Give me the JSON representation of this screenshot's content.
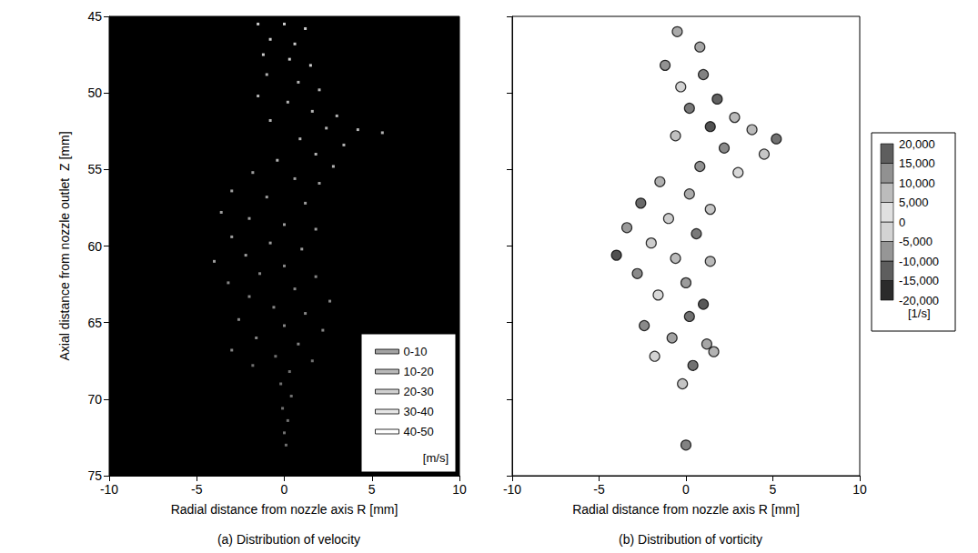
{
  "chart_data": [
    {
      "type": "scatter",
      "title": "(a) Distribution of velocity",
      "x_label": "Radial distance from nozzle axis R [mm]",
      "y_label": "Axial distance from nozzle outlet  Z [mm]",
      "xlim": [
        -10,
        10
      ],
      "xticks": [
        -10,
        -5,
        0,
        5,
        10
      ],
      "ylim": [
        75,
        45
      ],
      "yticks": [
        45,
        50,
        55,
        60,
        65,
        70,
        75
      ],
      "marker": "rect",
      "legend": "lower right",
      "legend_title": "[m/s]",
      "series": [
        {
          "name": "0-10",
          "color": "#8c8c8c",
          "values": [
            [
              -0.5,
              67.2
            ],
            [
              1.6,
              67.5
            ],
            [
              -1.8,
              67.8
            ],
            [
              0.3,
              68.2
            ],
            [
              -0.2,
              69
            ],
            [
              0.4,
              69.8
            ],
            [
              -0.1,
              70.6
            ],
            [
              0.2,
              71.4
            ],
            [
              0,
              72.2
            ],
            [
              0.1,
              73
            ]
          ]
        },
        {
          "name": "10-20",
          "color": "#a8a8a8",
          "values": [
            [
              0,
              61.3
            ],
            [
              -1.4,
              61.8
            ],
            [
              1.8,
              62
            ],
            [
              -3.2,
              62.4
            ],
            [
              0.6,
              62.8
            ],
            [
              -2,
              63.3
            ],
            [
              2.6,
              63.6
            ],
            [
              -0.6,
              64
            ],
            [
              1.2,
              64.4
            ],
            [
              -2.6,
              64.8
            ],
            [
              0,
              65.2
            ],
            [
              2.2,
              65.5
            ],
            [
              -1.6,
              66
            ],
            [
              0.8,
              66.4
            ],
            [
              -3,
              66.8
            ]
          ]
        },
        {
          "name": "20-30",
          "color": "#c4c4c4",
          "values": [
            [
              -1.8,
              55.2
            ],
            [
              0.6,
              55.6
            ],
            [
              2,
              55.9
            ],
            [
              -3,
              56.4
            ],
            [
              -1,
              56.8
            ],
            [
              1.2,
              57.2
            ],
            [
              -3.6,
              57.8
            ],
            [
              -2,
              58.2
            ],
            [
              0,
              58.6
            ],
            [
              1.8,
              58.9
            ],
            [
              -3,
              59.4
            ],
            [
              -0.8,
              59.8
            ],
            [
              1,
              60.2
            ],
            [
              -2.2,
              60.6
            ],
            [
              -4,
              61
            ]
          ]
        },
        {
          "name": "30-40",
          "color": "#e0e0e0",
          "values": [
            [
              -1,
              48.8
            ],
            [
              0.8,
              49.3
            ],
            [
              2,
              49.8
            ],
            [
              -1.5,
              50.2
            ],
            [
              0.2,
              50.6
            ],
            [
              1.6,
              51.2
            ],
            [
              3,
              51.5
            ],
            [
              -0.8,
              51.8
            ],
            [
              2.4,
              52.3
            ],
            [
              4.2,
              52.4
            ],
            [
              5.6,
              52.6
            ],
            [
              0.9,
              53
            ],
            [
              3.4,
              53.4
            ],
            [
              1.8,
              54
            ],
            [
              -0.4,
              54.4
            ],
            [
              2.8,
              54.8
            ]
          ]
        },
        {
          "name": "40-50",
          "color": "#ffffff",
          "values": [
            [
              -1.5,
              45.5
            ],
            [
              0,
              45.5
            ],
            [
              1.2,
              45.8
            ],
            [
              -0.8,
              46.5
            ],
            [
              0.6,
              46.8
            ],
            [
              -1.2,
              47.5
            ],
            [
              0.3,
              47.8
            ],
            [
              1.5,
              48.2
            ]
          ]
        }
      ]
    },
    {
      "type": "scatter",
      "title": "(b) Distribution of vorticity",
      "x_label": "Radial distance from nozzle axis R [mm]",
      "xlim": [
        -10,
        10
      ],
      "xticks": [
        -10,
        -5,
        0,
        5,
        10
      ],
      "ylim": [
        75,
        45
      ],
      "yticks": [
        45,
        50,
        55,
        60,
        65,
        70,
        75
      ],
      "tick_labels": "x",
      "marker": "circle",
      "values": [
        [
          -0.5,
          46,
          12000
        ],
        [
          0.8,
          47,
          -8000
        ],
        [
          -1.2,
          48.2,
          15000
        ],
        [
          1,
          48.8,
          -12000
        ],
        [
          -0.3,
          49.6,
          6000
        ],
        [
          1.8,
          50.4,
          -16000
        ],
        [
          0.2,
          51,
          18000
        ],
        [
          2.8,
          51.6,
          -6000
        ],
        [
          3.8,
          52.4,
          10000
        ],
        [
          5.2,
          53,
          -14000
        ],
        [
          1.4,
          52.2,
          -18000
        ],
        [
          4.5,
          54,
          8000
        ],
        [
          -0.6,
          52.8,
          9000
        ],
        [
          2.2,
          53.6,
          16000
        ],
        [
          0.8,
          54.8,
          -10000
        ],
        [
          3,
          55.2,
          5000
        ],
        [
          -1.5,
          55.8,
          -7000
        ],
        [
          0.2,
          56.6,
          12000
        ],
        [
          -2.6,
          57.2,
          -15000
        ],
        [
          1.4,
          57.6,
          8000
        ],
        [
          -1,
          58.2,
          -4000
        ],
        [
          -3.4,
          58.8,
          14000
        ],
        [
          0.6,
          59.2,
          -13000
        ],
        [
          -2,
          59.8,
          7000
        ],
        [
          -4,
          60.6,
          -18000
        ],
        [
          -0.6,
          60.8,
          10000
        ],
        [
          1.4,
          61,
          -6000
        ],
        [
          -2.8,
          61.8,
          16000
        ],
        [
          0,
          62.4,
          -9000
        ],
        [
          -1.6,
          63.2,
          5000
        ],
        [
          1,
          63.8,
          -17000
        ],
        [
          0.2,
          64.6,
          19000
        ],
        [
          -2.4,
          65.2,
          -11000
        ],
        [
          -0.8,
          66,
          13000
        ],
        [
          1.2,
          66.4,
          -8000
        ],
        [
          -1.8,
          67.2,
          6000
        ],
        [
          0.4,
          67.8,
          -14000
        ],
        [
          1.6,
          66.9,
          11000
        ],
        [
          -0.2,
          69,
          -5000
        ],
        [
          0,
          73,
          -12000
        ]
      ],
      "colorbar": {
        "range": [
          -20000,
          20000
        ],
        "ticks": [
          20000,
          15000,
          10000,
          5000,
          0,
          -5000,
          -10000,
          -15000,
          -20000
        ],
        "label": "[1/s]"
      }
    }
  ]
}
